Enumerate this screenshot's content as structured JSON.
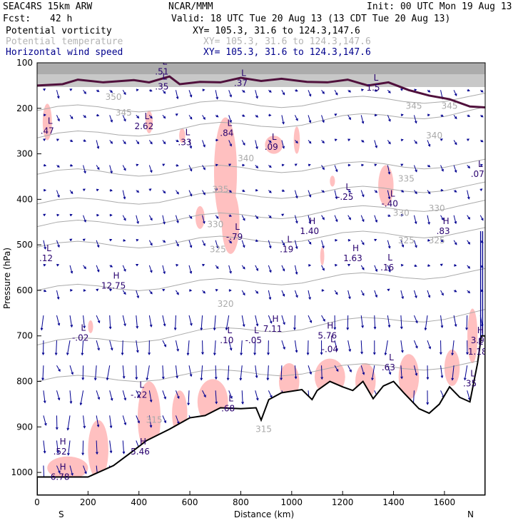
{
  "header": {
    "model": "SEAC4RS 15km ARW",
    "org": "NCAR/MMM",
    "init": "Init: 00 UTC Mon 19 Aug 13",
    "fcst_label": "Fcst:",
    "fcst_value": "42 h",
    "valid": "Valid: 18 UTC Tue 20 Aug 13 (13 CDT Tue 20 Aug 13)"
  },
  "fields": [
    {
      "name": "Potential vorticity",
      "xy": "XY= 105.3, 31.6 to 124.3,147.6",
      "color": "#000000"
    },
    {
      "name": "Potential temperature",
      "xy": "XY= 105.3, 31.6 to 124.3,147.6",
      "color": "#b4b4b4"
    },
    {
      "name": "Horizontal wind speed",
      "xy": "XY= 105.3, 31.6 to 124.3,147.6",
      "color": "#00008c"
    }
  ],
  "colors": {
    "pv_shade": "#ffc0c0",
    "theta": "#aaaaaa",
    "wind": "#000090",
    "tropopause": "#50103c",
    "hl_labels": "#28006e",
    "terrain": "#000000"
  },
  "chart_data": {
    "type": "cross-section",
    "xlabel": "Distance (km)",
    "ylabel": "Pressure (hPa)",
    "xlim": [
      0,
      1760
    ],
    "ylim": [
      1050,
      100
    ],
    "xticks": [
      0,
      200,
      400,
      600,
      800,
      1000,
      1200,
      1400,
      1600
    ],
    "yticks": [
      100,
      200,
      300,
      400,
      500,
      600,
      700,
      800,
      900,
      1000
    ],
    "x_endpoints": {
      "left": "S",
      "right": "N"
    },
    "theta_contours": [
      {
        "label": "350",
        "x": 300,
        "p": 175
      },
      {
        "label": "345",
        "x": 340,
        "p": 210
      },
      {
        "label": "345",
        "x": 1480,
        "p": 195
      },
      {
        "label": "345",
        "x": 1620,
        "p": 195
      },
      {
        "label": "340",
        "x": 820,
        "p": 310
      },
      {
        "label": "340",
        "x": 1560,
        "p": 260
      },
      {
        "label": "335",
        "x": 720,
        "p": 378
      },
      {
        "label": "335",
        "x": 1450,
        "p": 355
      },
      {
        "label": "330",
        "x": 700,
        "p": 455
      },
      {
        "label": "330",
        "x": 1430,
        "p": 430
      },
      {
        "label": "330",
        "x": 1570,
        "p": 420
      },
      {
        "label": "325",
        "x": 710,
        "p": 510
      },
      {
        "label": "325",
        "x": 1450,
        "p": 490
      },
      {
        "label": "325",
        "x": 1570,
        "p": 490
      },
      {
        "label": "320",
        "x": 740,
        "p": 630
      },
      {
        "label": "315",
        "x": 460,
        "p": 885
      },
      {
        "label": "315",
        "x": 890,
        "p": 905
      }
    ],
    "extrema": [
      {
        "type": "L",
        "value": ".51",
        "x": 490,
        "p": 115
      },
      {
        "type": "L",
        "value": ".35",
        "x": 490,
        "p": 148
      },
      {
        "type": "L",
        "value": ".37",
        "x": 800,
        "p": 140
      },
      {
        "type": "L",
        "value": "1.5",
        "x": 1320,
        "p": 150
      },
      {
        "type": "L",
        "value": ".47",
        "x": 40,
        "p": 245
      },
      {
        "type": "L",
        "value": "2.62",
        "x": 420,
        "p": 235
      },
      {
        "type": "L",
        "value": ".33",
        "x": 580,
        "p": 270
      },
      {
        "type": "L",
        "value": ".84",
        "x": 745,
        "p": 250
      },
      {
        "type": "L",
        "value": ".09",
        "x": 920,
        "p": 280
      },
      {
        "type": "L",
        "value": ".07",
        "x": 1730,
        "p": 340
      },
      {
        "type": "L",
        "value": "-.25",
        "x": 1210,
        "p": 390
      },
      {
        "type": "L",
        "value": "-.40",
        "x": 1385,
        "p": 405
      },
      {
        "type": "H",
        "value": "1.40",
        "x": 1070,
        "p": 465
      },
      {
        "type": "H",
        "value": ".83",
        "x": 1595,
        "p": 465
      },
      {
        "type": "L",
        "value": "-.79",
        "x": 775,
        "p": 478
      },
      {
        "type": "L",
        "value": ".19",
        "x": 980,
        "p": 505
      },
      {
        "type": "H",
        "value": "1.63",
        "x": 1240,
        "p": 525
      },
      {
        "type": "L",
        "value": ".16",
        "x": 1375,
        "p": 545
      },
      {
        "type": "L",
        "value": ".12",
        "x": 35,
        "p": 525
      },
      {
        "type": "H",
        "value": "12.75",
        "x": 300,
        "p": 585
      },
      {
        "type": "H",
        "value": "7.11",
        "x": 925,
        "p": 680
      },
      {
        "type": "H",
        "value": "5.76",
        "x": 1140,
        "p": 695
      },
      {
        "type": "L",
        "value": "-.04",
        "x": 1150,
        "p": 725
      },
      {
        "type": "L",
        "value": "-.02",
        "x": 170,
        "p": 700
      },
      {
        "type": "L",
        "value": ".10",
        "x": 745,
        "p": 705
      },
      {
        "type": "L",
        "value": "-.05",
        "x": 850,
        "p": 705
      },
      {
        "type": "H",
        "value": "3.9",
        "x": 1730,
        "p": 705
      },
      {
        "type": "L",
        "value": "1.18",
        "x": 1730,
        "p": 730
      },
      {
        "type": "L",
        "value": ".63",
        "x": 1380,
        "p": 765
      },
      {
        "type": "L",
        "value": ".35",
        "x": 1700,
        "p": 800
      },
      {
        "type": "L",
        "value": "-.22",
        "x": 400,
        "p": 825
      },
      {
        "type": "L",
        "value": ".68",
        "x": 750,
        "p": 855
      },
      {
        "type": "H",
        "value": ".52",
        "x": 90,
        "p": 950
      },
      {
        "type": "H",
        "value": "5.46",
        "x": 405,
        "p": 950
      },
      {
        "type": "H",
        "value": "6.78",
        "x": 90,
        "p": 1005
      }
    ]
  }
}
